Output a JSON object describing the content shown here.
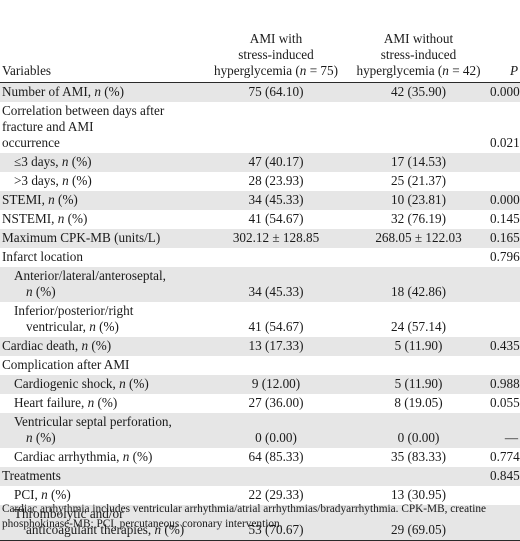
{
  "header": {
    "variables": "Variables",
    "col_with_lines": [
      "AMI with",
      "stress-induced",
      "hyperglycemia (n = 75)"
    ],
    "col_without_lines": [
      "AMI without",
      "stress-induced",
      "hyperglycemia (n = 42)"
    ],
    "p": "P"
  },
  "rows": [
    {
      "label": [
        "Number of AMI, n (%)"
      ],
      "with": "75 (64.10)",
      "without": "42 (35.90)",
      "p": "0.000",
      "indent": 0,
      "shade": true
    },
    {
      "label": [
        "Correlation between days after",
        "fracture and AMI",
        "occurrence"
      ],
      "with": "",
      "without": "",
      "p": "0.021",
      "indent": 0,
      "shade": false
    },
    {
      "label": [
        "≤3 days, n (%)"
      ],
      "with": "47 (40.17)",
      "without": "17 (14.53)",
      "p": "",
      "indent": 1,
      "shade": true
    },
    {
      "label": [
        ">3 days, n (%)"
      ],
      "with": "28 (23.93)",
      "without": "25 (21.37)",
      "p": "",
      "indent": 1,
      "shade": false
    },
    {
      "label": [
        "STEMI, n (%)"
      ],
      "with": "34 (45.33)",
      "without": "10 (23.81)",
      "p": "0.000",
      "indent": 0,
      "shade": true
    },
    {
      "label": [
        "NSTEMI, n (%)"
      ],
      "with": "41 (54.67)",
      "without": "32 (76.19)",
      "p": "0.145",
      "indent": 0,
      "shade": false
    },
    {
      "label": [
        "Maximum CPK-MB (units/L)"
      ],
      "with": "302.12 ± 128.85",
      "without": "268.05 ± 122.03",
      "p": "0.165",
      "indent": 0,
      "shade": true
    },
    {
      "label": [
        "Infarct location"
      ],
      "with": "",
      "without": "",
      "p": "0.796",
      "indent": 0,
      "shade": false
    },
    {
      "label": [
        "Anterior/lateral/anteroseptal,",
        "n (%)"
      ],
      "with": "34 (45.33)",
      "without": "18 (42.86)",
      "p": "",
      "indent": 1,
      "shade": true
    },
    {
      "label": [
        "Inferior/posterior/right",
        "ventricular, n (%)"
      ],
      "with": "41 (54.67)",
      "without": "24 (57.14)",
      "p": "",
      "indent": 1,
      "shade": false
    },
    {
      "label": [
        "Cardiac death, n (%)"
      ],
      "with": "13 (17.33)",
      "without": "5 (11.90)",
      "p": "0.435",
      "indent": 0,
      "shade": true
    },
    {
      "label": [
        "Complication after AMI"
      ],
      "with": "",
      "without": "",
      "p": "",
      "indent": 0,
      "shade": false
    },
    {
      "label": [
        "Cardiogenic shock, n (%)"
      ],
      "with": "9 (12.00)",
      "without": "5 (11.90)",
      "p": "0.988",
      "indent": 1,
      "shade": true
    },
    {
      "label": [
        "Heart failure, n (%)"
      ],
      "with": "27 (36.00)",
      "without": "8 (19.05)",
      "p": "0.055",
      "indent": 1,
      "shade": false
    },
    {
      "label": [
        "Ventricular septal perforation,",
        "n (%)"
      ],
      "with": "0 (0.00)",
      "without": "0 (0.00)",
      "p": "—",
      "indent": 1,
      "shade": true
    },
    {
      "label": [
        "Cardiac arrhythmia, n (%)"
      ],
      "with": "64 (85.33)",
      "without": "35 (83.33)",
      "p": "0.774",
      "indent": 1,
      "shade": false
    },
    {
      "label": [
        "Treatments"
      ],
      "with": "",
      "without": "",
      "p": "0.845",
      "indent": 0,
      "shade": true
    },
    {
      "label": [
        "PCI, n (%)"
      ],
      "with": "22 (29.33)",
      "without": "13 (30.95)",
      "p": "",
      "indent": 1,
      "shade": false
    },
    {
      "label": [
        "Thrombolytic and/or",
        "anticoagulant therapies, n (%)"
      ],
      "with": "53 (70.67)",
      "without": "29 (69.05)",
      "p": "",
      "indent": 1,
      "shade": true
    }
  ],
  "footnote": [
    "Cardiac arrhythmia includes ventricular arrhythmia/atrial arrhythmias/bradyarrhythmia. CPK-MB, creatine",
    "phosphokinase-MB; PCI, percutaneous coronary intervention."
  ]
}
